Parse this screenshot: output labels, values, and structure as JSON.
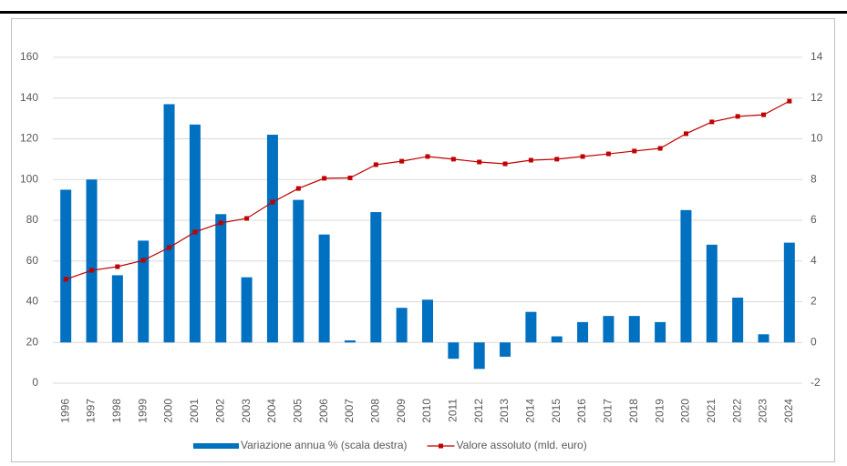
{
  "chart_data": {
    "type": "bar-line",
    "categories": [
      "1996",
      "1997",
      "1998",
      "1999",
      "2000",
      "2001",
      "2002",
      "2003",
      "2004",
      "2005",
      "2006",
      "2007",
      "2008",
      "2009",
      "2010",
      "2011",
      "2012",
      "2013",
      "2014",
      "2015",
      "2016",
      "2017",
      "2018",
      "2019",
      "2020",
      "2021",
      "2022",
      "2023",
      "2024"
    ],
    "series": [
      {
        "name": "Variazione annua % (scala destra)",
        "type": "bar",
        "axis": "y2",
        "color": "#0070c0",
        "values": [
          7.5,
          8.0,
          3.3,
          5.0,
          11.7,
          10.7,
          6.3,
          3.2,
          10.2,
          7.0,
          5.3,
          0.1,
          6.4,
          1.7,
          2.1,
          -0.8,
          -1.3,
          -0.7,
          1.5,
          0.3,
          1.0,
          1.3,
          1.3,
          1.0,
          6.5,
          4.8,
          2.2,
          0.4,
          4.9
        ]
      },
      {
        "name": "Valore assoluto (mld. euro)",
        "type": "line",
        "axis": "y",
        "color": "#c00000",
        "values": [
          51,
          55.4,
          57.2,
          60.3,
          66.6,
          74.2,
          78.7,
          80.9,
          88.9,
          95.6,
          100.6,
          100.8,
          107.3,
          109,
          111.3,
          110,
          108.6,
          107.7,
          109.5,
          110,
          111.3,
          112.6,
          114,
          115.3,
          122.5,
          128.3,
          131,
          131.8,
          138.5
        ]
      }
    ],
    "ylim": [
      0,
      160
    ],
    "yticks": [
      0,
      20,
      40,
      60,
      80,
      100,
      120,
      140,
      160
    ],
    "y2lim": [
      -2,
      14
    ],
    "y2ticks": [
      -2,
      0,
      2,
      4,
      6,
      8,
      10,
      12,
      14
    ],
    "grid": true,
    "legend": "bottom"
  }
}
